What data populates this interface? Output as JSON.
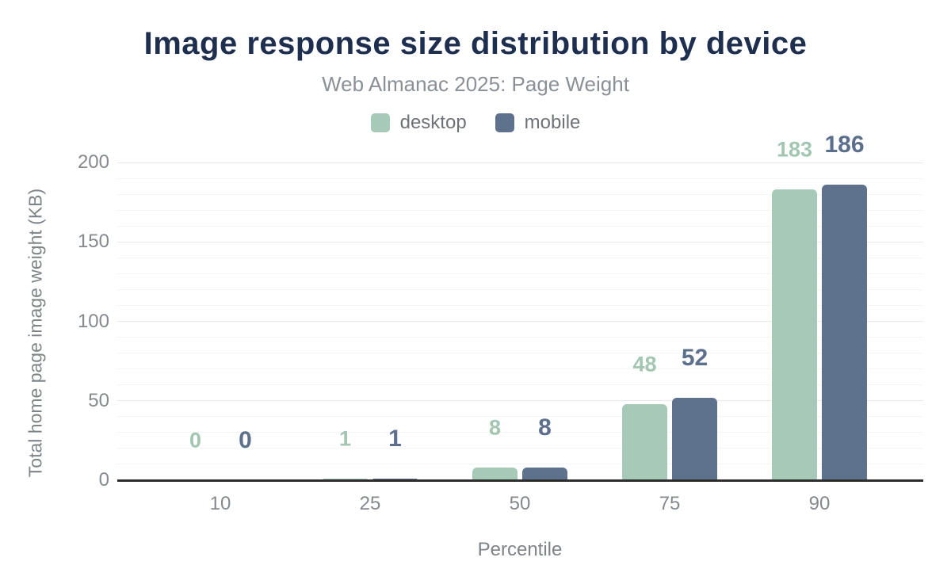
{
  "header": {
    "title": "Image response size distribution by device",
    "subtitle": "Web Almanac 2025: Page Weight"
  },
  "legend": {
    "items": [
      {
        "label": "desktop",
        "color": "#a7c9b7"
      },
      {
        "label": "mobile",
        "color": "#5e718d"
      }
    ]
  },
  "chart_data": {
    "type": "bar",
    "title": "Image response size distribution by device",
    "subtitle": "Web Almanac 2025: Page Weight",
    "categories": [
      "10",
      "25",
      "50",
      "75",
      "90"
    ],
    "series": [
      {
        "name": "desktop",
        "color": "#a7c9b7",
        "label_color": "#a2c6b2",
        "values": [
          0,
          1,
          8,
          48,
          183
        ]
      },
      {
        "name": "mobile",
        "color": "#5e718d",
        "label_color": "#5c6f8c",
        "values": [
          0,
          1,
          8,
          52,
          186
        ]
      }
    ],
    "xlabel": "Percentile",
    "ylabel": "Total home page image weight (KB)",
    "ylim": [
      0,
      200
    ],
    "yticks": [
      0,
      50,
      100,
      150,
      200
    ],
    "grid": {
      "orientation": "horizontal",
      "minor_step": 10,
      "major_step": 50
    },
    "legend_position": "top",
    "value_labels": true
  },
  "colors": {
    "background": "#ffffff",
    "title": "#1d2e4e",
    "subtitle": "#8a9096",
    "legend_text": "#6f7377",
    "tick_text": "#85898e",
    "axis_title_text": "#7f8489",
    "axis_line": "#2e2e2e",
    "grid_minor": "#f4f4f4",
    "grid_major": "#e9e9e9"
  }
}
